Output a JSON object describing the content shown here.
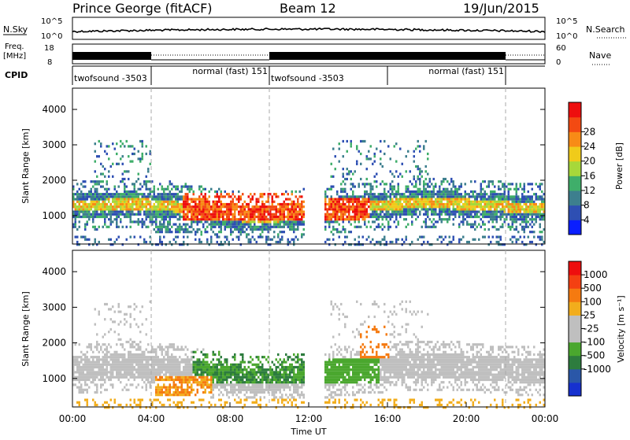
{
  "header": {
    "station": "Prince George (fitACF)",
    "beam": "Beam 12",
    "date": "19/Jun/2015"
  },
  "strip": {
    "nsky_label": "N.Sky",
    "nsky_ticks": [
      "10^5",
      "10^0"
    ],
    "nsearch_label": "N.Search",
    "nsearch_ticks": [
      "10^5",
      "10^0"
    ],
    "freq_label": "Freq.",
    "freq_unit": "[MHz]",
    "freq_ticks": [
      "18",
      "8"
    ],
    "nave_label": "Nave",
    "nave_ticks": [
      "60",
      "0"
    ],
    "cpid_label": "CPID",
    "cpid_segments": [
      {
        "label": "twofsound -3503",
        "start": 0,
        "end": 4
      },
      {
        "label": "normal (fast) 151",
        "start": 4,
        "end": 10
      },
      {
        "label": "twofsound -3503",
        "start": 10,
        "end": 16
      },
      {
        "label": "normal (fast) 151",
        "start": 16,
        "end": 22
      }
    ]
  },
  "colors": {
    "power_scale": [
      "#0a1eff",
      "#2e4fb3",
      "#3d7f8e",
      "#3fae6a",
      "#a7d83a",
      "#f0cb1a",
      "#f88b16",
      "#f34a12",
      "#ee0e0e"
    ],
    "velocity_scale": [
      "#1631cf",
      "#2a57a8",
      "#2d7c3e",
      "#4aa72e",
      "#bfbfbf",
      "#bfbfbf",
      "#f2ad1c",
      "#f57a10",
      "#f44012",
      "#ee0e0e"
    ]
  },
  "chart_data": [
    {
      "type": "heatmap",
      "name": "power",
      "ylabel": "Slant Range [km]",
      "yticks": [
        1000,
        2000,
        3000,
        4000
      ],
      "ylim": [
        200,
        4600
      ],
      "xlim": [
        0,
        24
      ],
      "colorbar_label": "Power [dB]",
      "colorbar_ticks": [
        "4",
        "8",
        "12",
        "16",
        "20",
        "24",
        "28"
      ],
      "colorbar_range": [
        0,
        32
      ],
      "grid": "vertical dashed lines at mode changes"
    },
    {
      "type": "heatmap",
      "name": "velocity",
      "ylabel": "Slant Range [km]",
      "yticks": [
        1000,
        2000,
        3000,
        4000
      ],
      "ylim": [
        200,
        4600
      ],
      "xlim": [
        0,
        24
      ],
      "xlabel": "Time UT",
      "xticks": [
        "00:00",
        "04:00",
        "08:00",
        "12:00",
        "16:00",
        "20:00",
        "00:00"
      ],
      "colorbar_label": "Velocity [m s⁻¹]",
      "colorbar_ticks": [
        "1000",
        "500",
        "100",
        "25",
        "-25",
        "-100",
        "-500",
        "-1000"
      ]
    }
  ]
}
